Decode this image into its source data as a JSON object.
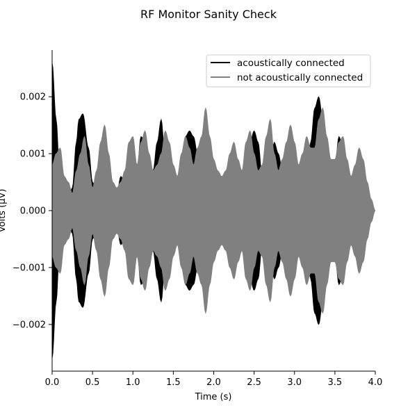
{
  "chart_data": {
    "type": "area",
    "title": "RF Monitor Sanity Check",
    "xlabel": "Time (s)",
    "ylabel": "Volts (µV)",
    "xlim": [
      0,
      4
    ],
    "ylim": [
      -0.00282,
      0.00282
    ],
    "xticks": [
      0.0,
      0.5,
      1.0,
      1.5,
      2.0,
      2.5,
      3.0,
      3.5,
      4.0
    ],
    "xtick_labels": [
      "0.0",
      "0.5",
      "1.0",
      "1.5",
      "2.0",
      "2.5",
      "3.0",
      "3.5",
      "4.0"
    ],
    "yticks": [
      -0.002,
      -0.001,
      0.0,
      0.001,
      0.002
    ],
    "ytick_labels": [
      "−0.002",
      "−0.001",
      "0.000",
      "0.001",
      "0.002"
    ],
    "grid": false,
    "legend_position": "top-right",
    "plot_style": "dense oscillating signal drawn as symmetric envelope around zero",
    "series": [
      {
        "name": "acoustically connected",
        "color": "#000000",
        "envelope": {
          "t": [
            0.0,
            0.05,
            0.1,
            0.15,
            0.2,
            0.25,
            0.3,
            0.33,
            0.38,
            0.45,
            0.5,
            0.55,
            0.6,
            0.65,
            0.7,
            0.75,
            0.8,
            0.85,
            0.9,
            0.95,
            1.0,
            1.05,
            1.1,
            1.15,
            1.2,
            1.25,
            1.3,
            1.35,
            1.4,
            1.45,
            1.5,
            1.55,
            1.6,
            1.65,
            1.7,
            1.75,
            1.8,
            1.85,
            1.9,
            1.95,
            2.0,
            2.05,
            2.1,
            2.15,
            2.2,
            2.25,
            2.3,
            2.35,
            2.4,
            2.45,
            2.5,
            2.55,
            2.6,
            2.65,
            2.7,
            2.75,
            2.8,
            2.85,
            2.9,
            2.95,
            3.0,
            3.05,
            3.1,
            3.15,
            3.2,
            3.25,
            3.3,
            3.35,
            3.4,
            3.45,
            3.5,
            3.55,
            3.6,
            3.65,
            3.7,
            3.75,
            3.8,
            3.85,
            3.9,
            3.95,
            4.0
          ],
          "amp": [
            0.0026,
            0.0016,
            0.0004,
            0.0005,
            0.0002,
            0.0004,
            0.0012,
            0.0016,
            0.0017,
            0.0011,
            0.0005,
            0.0003,
            0.0006,
            0.0005,
            0.0003,
            0.0001,
            0.0003,
            0.0006,
            0.0005,
            0.0004,
            0.0005,
            0.0007,
            0.0013,
            0.0012,
            0.0005,
            0.0007,
            0.0012,
            0.0016,
            0.0009,
            0.0006,
            0.0004,
            0.0005,
            0.0008,
            0.0013,
            0.0014,
            0.0013,
            0.001,
            0.0006,
            0.0004,
            0.0006,
            0.0008,
            0.0006,
            0.0004,
            0.0002,
            0.0003,
            0.0005,
            0.0006,
            0.0004,
            0.0006,
            0.0012,
            0.0014,
            0.0012,
            0.0006,
            0.0004,
            0.0008,
            0.0012,
            0.001,
            0.0007,
            0.0004,
            0.0005,
            0.0008,
            0.0006,
            0.0004,
            0.0006,
            0.0012,
            0.0018,
            0.002,
            0.0016,
            0.0009,
            0.0006,
            0.0008,
            0.0013,
            0.0011,
            0.0008,
            0.0006,
            0.0005,
            0.0004,
            0.0003,
            0.0002,
            0.0001,
            0.0
          ]
        }
      },
      {
        "name": "not acoustically connected",
        "color": "#808080",
        "envelope": {
          "t": [
            0.0,
            0.05,
            0.1,
            0.15,
            0.2,
            0.25,
            0.3,
            0.35,
            0.4,
            0.45,
            0.5,
            0.55,
            0.6,
            0.65,
            0.7,
            0.75,
            0.8,
            0.85,
            0.9,
            0.95,
            1.0,
            1.05,
            1.1,
            1.15,
            1.2,
            1.25,
            1.3,
            1.35,
            1.4,
            1.45,
            1.5,
            1.55,
            1.6,
            1.65,
            1.7,
            1.75,
            1.8,
            1.85,
            1.9,
            1.95,
            2.0,
            2.05,
            2.1,
            2.15,
            2.2,
            2.25,
            2.3,
            2.35,
            2.4,
            2.45,
            2.5,
            2.55,
            2.6,
            2.65,
            2.7,
            2.75,
            2.8,
            2.85,
            2.9,
            2.95,
            3.0,
            3.05,
            3.1,
            3.15,
            3.2,
            3.25,
            3.3,
            3.35,
            3.4,
            3.45,
            3.5,
            3.55,
            3.6,
            3.65,
            3.7,
            3.75,
            3.8,
            3.85,
            3.9,
            3.95,
            4.0
          ],
          "amp": [
            0.0008,
            0.001,
            0.0011,
            0.0006,
            0.0005,
            0.0003,
            0.0007,
            0.001,
            0.0013,
            0.0008,
            0.0004,
            0.0007,
            0.0012,
            0.0015,
            0.001,
            0.0005,
            0.0004,
            0.0005,
            0.0007,
            0.0012,
            0.0013,
            0.0008,
            0.0012,
            0.0014,
            0.001,
            0.0007,
            0.0008,
            0.001,
            0.0014,
            0.0012,
            0.0008,
            0.0006,
            0.001,
            0.0013,
            0.0011,
            0.0008,
            0.0011,
            0.0013,
            0.0018,
            0.0013,
            0.0009,
            0.0007,
            0.0006,
            0.0007,
            0.001,
            0.0012,
            0.0009,
            0.0007,
            0.0012,
            0.0014,
            0.001,
            0.0007,
            0.0008,
            0.0013,
            0.0016,
            0.001,
            0.0007,
            0.0009,
            0.0012,
            0.0015,
            0.0012,
            0.0008,
            0.001,
            0.0013,
            0.0011,
            0.0011,
            0.0016,
            0.0018,
            0.0013,
            0.0009,
            0.0009,
            0.0012,
            0.0013,
            0.0009,
            0.0006,
            0.0008,
            0.0011,
            0.0009,
            0.0005,
            0.0002,
            0.0
          ]
        }
      }
    ]
  }
}
